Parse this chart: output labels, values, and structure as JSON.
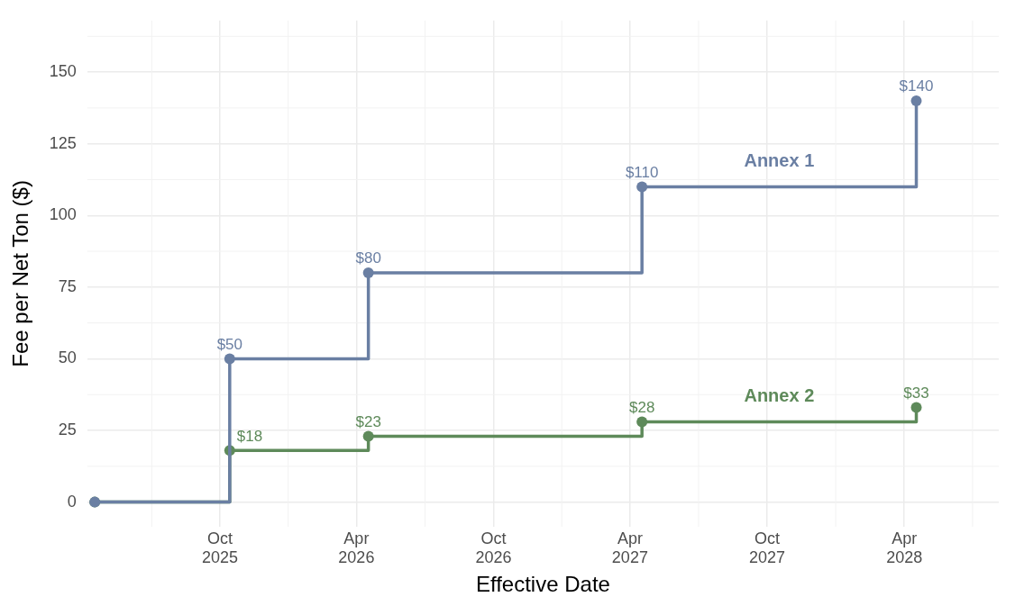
{
  "chart_data": {
    "type": "step",
    "xlabel": "Effective Date",
    "ylabel": "Fee per Net Ton ($)",
    "x": [
      "2025-04-17",
      "2025-10-14",
      "2026-04-17",
      "2027-04-17",
      "2028-04-17"
    ],
    "series": [
      {
        "name": "Annex 1",
        "color": "#6a7fa3",
        "values": [
          0,
          50,
          80,
          110,
          140
        ],
        "value_labels": [
          null,
          "$50",
          "$80",
          "$110",
          "$140"
        ]
      },
      {
        "name": "Annex 2",
        "color": "#5e8a5a",
        "values": [
          0,
          18,
          23,
          28,
          33
        ],
        "value_labels": [
          null,
          "$18",
          "$23",
          "$28",
          "$33"
        ]
      }
    ],
    "xlim": [
      "2025-04-07",
      "2028-08-05"
    ],
    "xticks": [
      {
        "value": "2025-10-01",
        "label": "Oct 2025"
      },
      {
        "value": "2026-04-01",
        "label": "Apr 2026"
      },
      {
        "value": "2026-10-01",
        "label": "Oct 2026"
      },
      {
        "value": "2027-04-01",
        "label": "Apr 2027"
      },
      {
        "value": "2027-10-01",
        "label": "Oct 2027"
      },
      {
        "value": "2028-04-01",
        "label": "Apr 2028"
      }
    ],
    "ylim": [
      -8.6,
      168
    ],
    "yticks": [
      0,
      25,
      50,
      75,
      100,
      125,
      150
    ],
    "grid": true,
    "legend": false,
    "marker": "circle",
    "line_style": "solid"
  }
}
